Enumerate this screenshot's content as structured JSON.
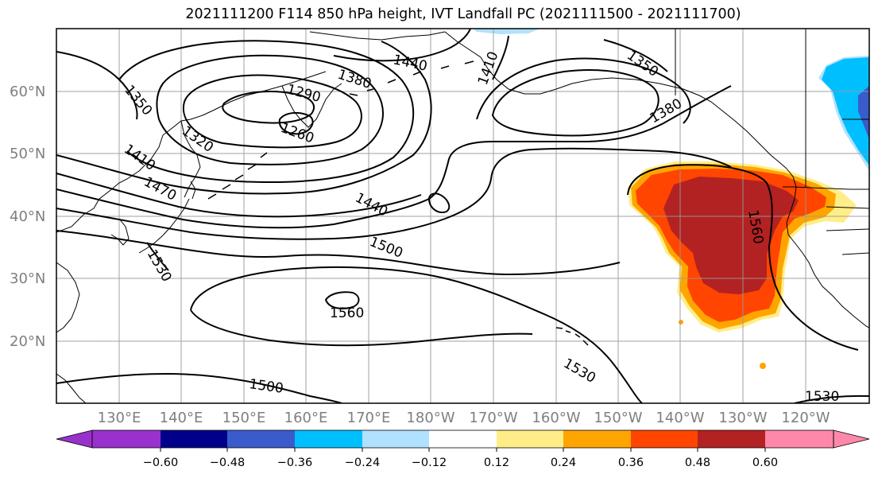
{
  "title": "2021111200 F114 850 hPa height, IVT Landfall PC (2021111500 - 2021111700)",
  "map": {
    "lon_labels": [
      "130°E",
      "140°E",
      "150°E",
      "160°E",
      "170°E",
      "180°W",
      "170°W",
      "160°W",
      "150°W",
      "140°W",
      "130°W",
      "120°W"
    ],
    "lat_labels": [
      "60°N",
      "50°N",
      "40°N",
      "30°N",
      "20°N"
    ],
    "contour_labels": [
      "1440",
      "1410",
      "1350",
      "1380",
      "1290",
      "1380",
      "1350",
      "1320",
      "1260",
      "1410",
      "1470",
      "1440",
      "1500",
      "1530",
      "1560",
      "1560",
      "1530",
      "1500",
      "1530"
    ]
  },
  "colorbar": {
    "tick_labels": [
      "−0.60",
      "−0.48",
      "−0.36",
      "−0.24",
      "−0.12",
      "0.12",
      "0.24",
      "0.36",
      "0.48",
      "0.60"
    ],
    "colors": [
      "#9932cc",
      "#00008b",
      "#3a5bcb",
      "#00bfff",
      "#b0e2ff",
      "#ffffff",
      "#ffee88",
      "#ffa500",
      "#ff4500",
      "#b22222",
      "#ff88aa"
    ]
  },
  "shading_colors": {
    "yellow": "#ffee88",
    "orange": "#ffa500",
    "red_orange": "#ff4500",
    "dark_red": "#b22222",
    "light_blue": "#b0e2ff",
    "blue": "#00bfff",
    "dark_blue": "#3a5bcb"
  }
}
